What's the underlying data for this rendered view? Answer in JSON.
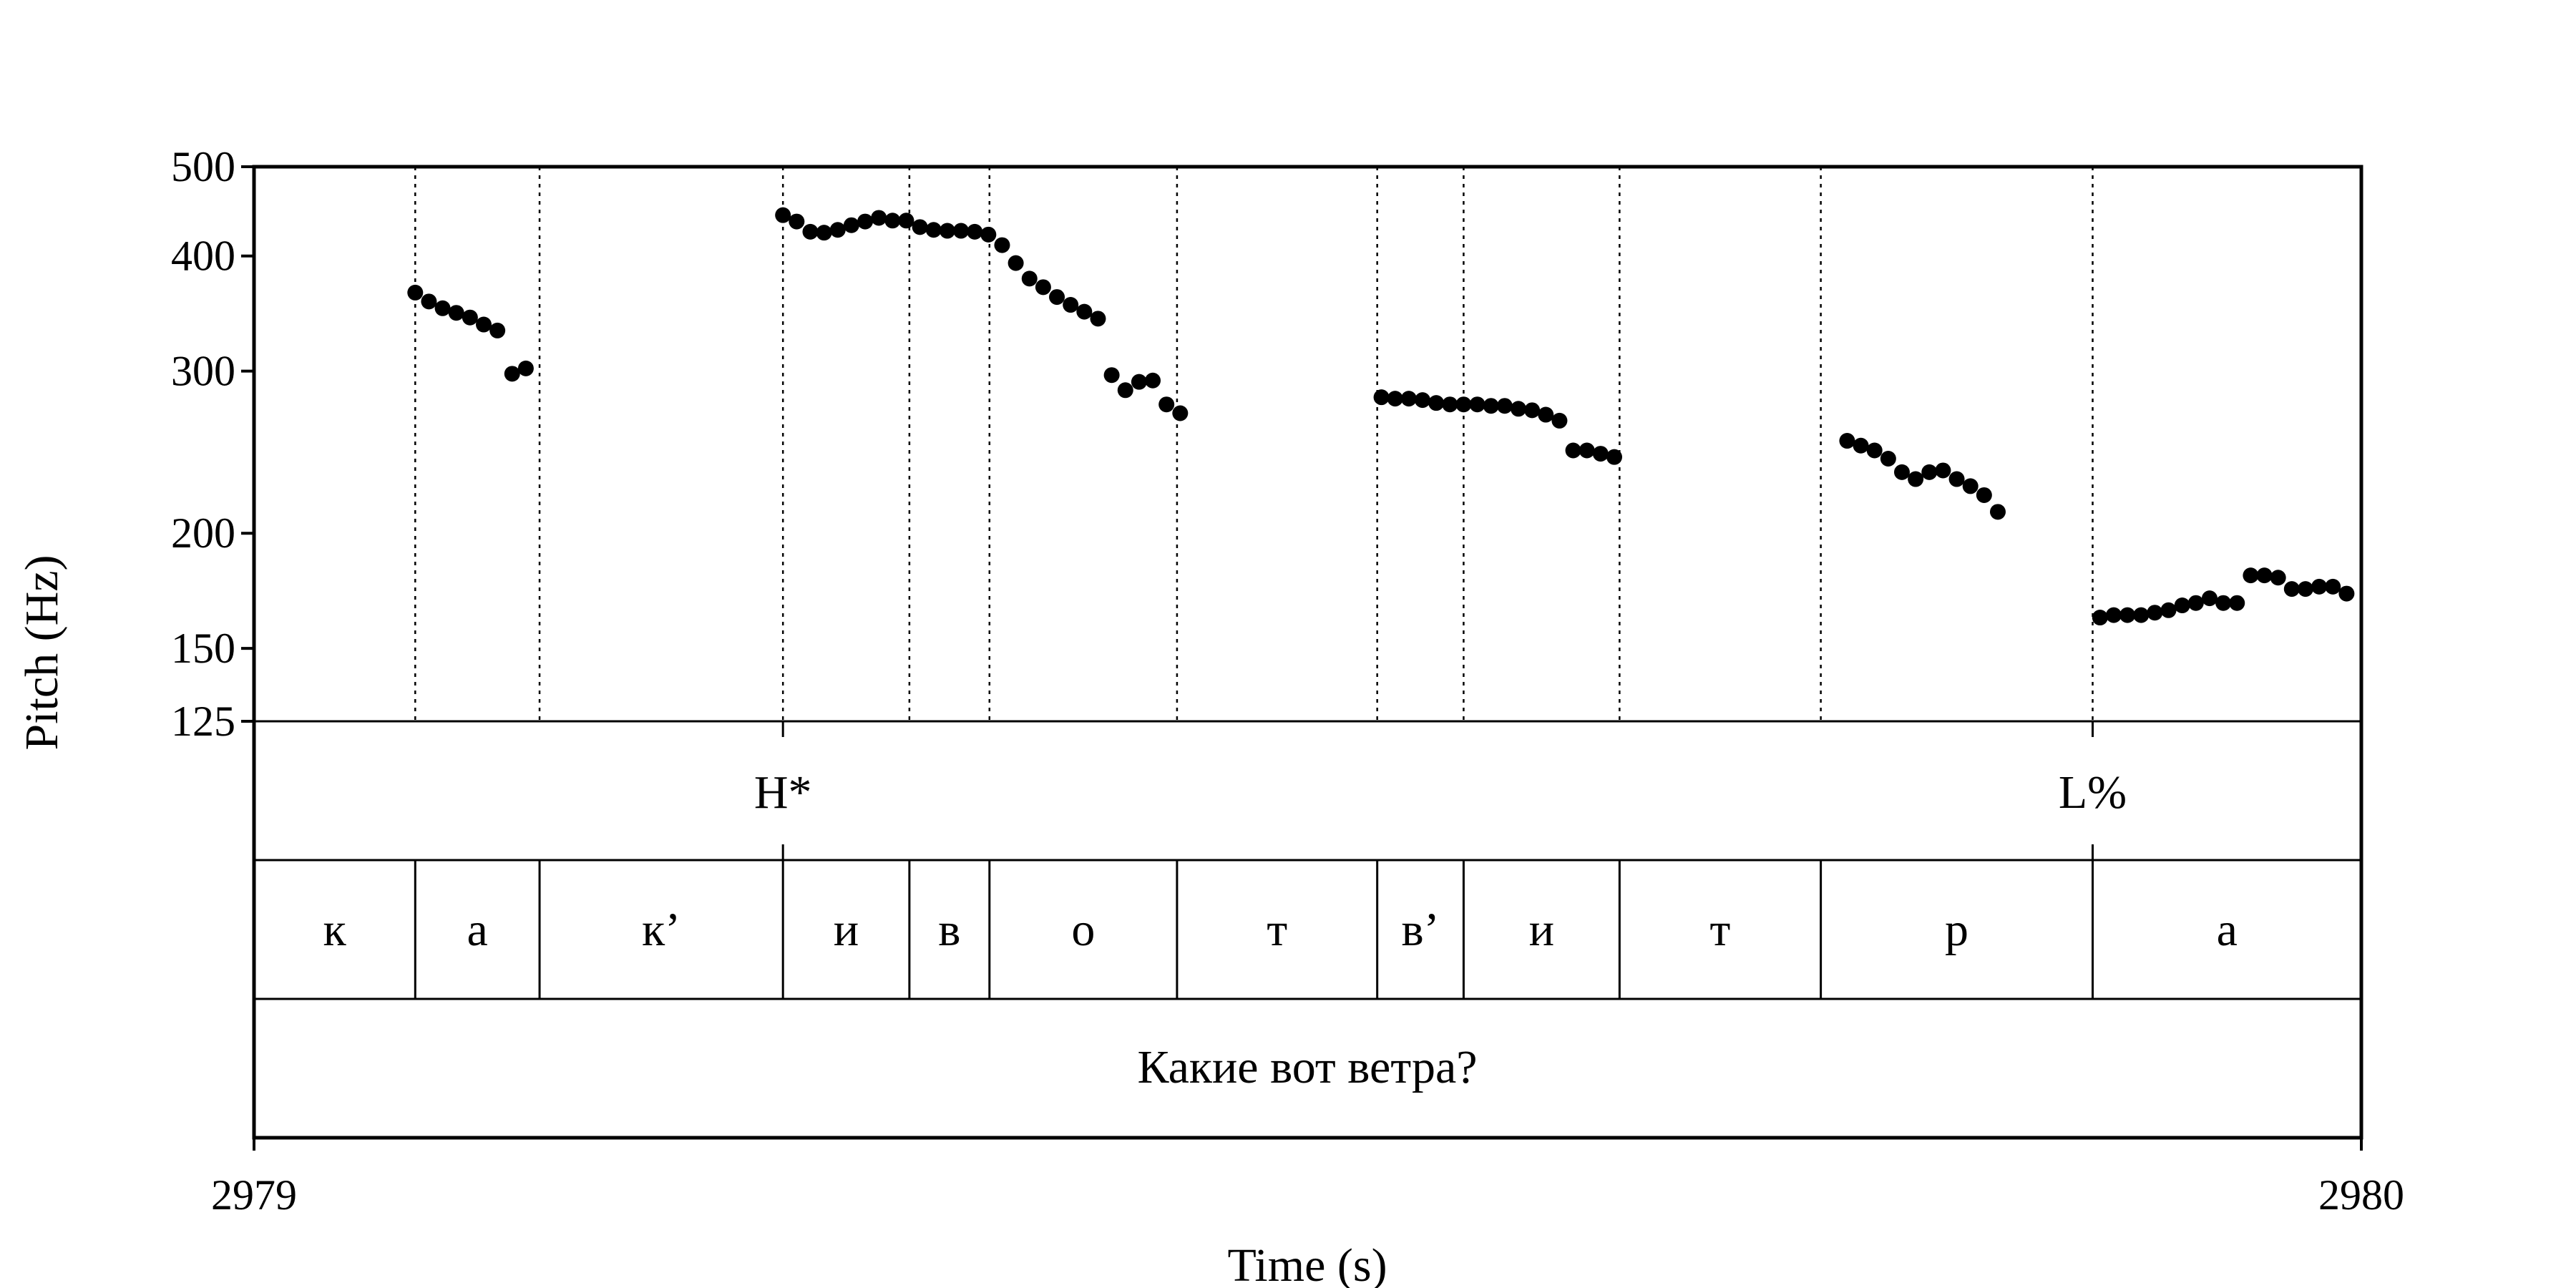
{
  "chart_data": {
    "type": "scatter",
    "xlabel": "Time (s)",
    "ylabel": "Pitch (Hz)",
    "xlim": [
      2979,
      2980
    ],
    "ylim": [
      125,
      500
    ],
    "y_scale": "log",
    "x_ticks": [
      {
        "value": 2979,
        "label": "2979"
      },
      {
        "value": 2980,
        "label": "2980"
      }
    ],
    "y_ticks": [
      {
        "value": 500,
        "label": "500"
      },
      {
        "value": 400,
        "label": "400"
      },
      {
        "value": 300,
        "label": "300"
      },
      {
        "value": 200,
        "label": "200"
      },
      {
        "value": 150,
        "label": "150"
      },
      {
        "value": 125,
        "label": "125"
      }
    ],
    "grid": false,
    "series": [
      {
        "color": "#000000",
        "points": [
          [
            2979.0765,
            365
          ],
          [
            2979.083,
            357
          ],
          [
            2979.0895,
            351
          ],
          [
            2979.096,
            347
          ],
          [
            2979.1025,
            343
          ],
          [
            2979.109,
            337
          ],
          [
            2979.1155,
            332
          ],
          [
            2979.1225,
            298
          ],
          [
            2979.129,
            302
          ],
          [
            2979.251,
            443
          ],
          [
            2979.2575,
            436
          ],
          [
            2979.264,
            425
          ],
          [
            2979.2705,
            424
          ],
          [
            2979.277,
            427
          ],
          [
            2979.2835,
            432
          ],
          [
            2979.29,
            436
          ],
          [
            2979.2965,
            440
          ],
          [
            2979.303,
            437
          ],
          [
            2979.3095,
            437
          ],
          [
            2979.316,
            430
          ],
          [
            2979.3225,
            427
          ],
          [
            2979.329,
            426
          ],
          [
            2979.3355,
            426
          ],
          [
            2979.342,
            425
          ],
          [
            2979.3485,
            422
          ],
          [
            2979.355,
            411
          ],
          [
            2979.3615,
            393
          ],
          [
            2979.368,
            378
          ],
          [
            2979.3745,
            370
          ],
          [
            2979.381,
            361
          ],
          [
            2979.3875,
            354
          ],
          [
            2979.394,
            348
          ],
          [
            2979.4005,
            342
          ],
          [
            2979.407,
            297
          ],
          [
            2979.4135,
            286
          ],
          [
            2979.42,
            292
          ],
          [
            2979.4265,
            293
          ],
          [
            2979.433,
            276
          ],
          [
            2979.4395,
            270
          ],
          [
            2979.535,
            281
          ],
          [
            2979.5415,
            280
          ],
          [
            2979.548,
            280
          ],
          [
            2979.5545,
            279
          ],
          [
            2979.561,
            277
          ],
          [
            2979.5675,
            276
          ],
          [
            2979.574,
            276
          ],
          [
            2979.5805,
            276
          ],
          [
            2979.587,
            275
          ],
          [
            2979.5935,
            275
          ],
          [
            2979.6,
            273
          ],
          [
            2979.6065,
            272
          ],
          [
            2979.613,
            269
          ],
          [
            2979.6195,
            265
          ],
          [
            2979.626,
            246
          ],
          [
            2979.6325,
            246
          ],
          [
            2979.639,
            244
          ],
          [
            2979.6455,
            242
          ],
          [
            2979.756,
            252
          ],
          [
            2979.7625,
            249
          ],
          [
            2979.769,
            246
          ],
          [
            2979.7755,
            241
          ],
          [
            2979.782,
            233
          ],
          [
            2979.7885,
            229
          ],
          [
            2979.795,
            233
          ],
          [
            2979.8015,
            234
          ],
          [
            2979.808,
            229
          ],
          [
            2979.8145,
            225
          ],
          [
            2979.821,
            220
          ],
          [
            2979.8275,
            211
          ],
          [
            2979.876,
            162
          ],
          [
            2979.8825,
            163
          ],
          [
            2979.889,
            163
          ],
          [
            2979.8955,
            163
          ],
          [
            2979.902,
            164
          ],
          [
            2979.9085,
            165
          ],
          [
            2979.915,
            167
          ],
          [
            2979.9215,
            168
          ],
          [
            2979.928,
            170
          ],
          [
            2979.9345,
            168
          ],
          [
            2979.941,
            168
          ],
          [
            2979.9475,
            180
          ],
          [
            2979.954,
            180
          ],
          [
            2979.9605,
            179
          ],
          [
            2979.967,
            174
          ],
          [
            2979.9735,
            174
          ],
          [
            2979.98,
            175
          ],
          [
            2979.9865,
            175
          ],
          [
            2979.993,
            172
          ]
        ]
      }
    ],
    "tones": [
      {
        "label": "H*",
        "time": 2979.251
      },
      {
        "label": "L%",
        "time": 2979.8725
      }
    ],
    "segments": [
      {
        "label": "к",
        "start": 2979.0,
        "end": 2979.0765
      },
      {
        "label": "а",
        "start": 2979.0765,
        "end": 2979.1355
      },
      {
        "label": "к’",
        "start": 2979.1355,
        "end": 2979.251
      },
      {
        "label": "и",
        "start": 2979.251,
        "end": 2979.311
      },
      {
        "label": "в",
        "start": 2979.311,
        "end": 2979.349
      },
      {
        "label": "о",
        "start": 2979.349,
        "end": 2979.438
      },
      {
        "label": "т",
        "start": 2979.438,
        "end": 2979.533
      },
      {
        "label": "в’",
        "start": 2979.533,
        "end": 2979.574
      },
      {
        "label": "и",
        "start": 2979.574,
        "end": 2979.648
      },
      {
        "label": "т",
        "start": 2979.648,
        "end": 2979.7435
      },
      {
        "label": "р",
        "start": 2979.7435,
        "end": 2979.8725
      },
      {
        "label": "а",
        "start": 2979.8725,
        "end": 2980.0
      }
    ],
    "sentence": "Какие вот ветра?"
  }
}
